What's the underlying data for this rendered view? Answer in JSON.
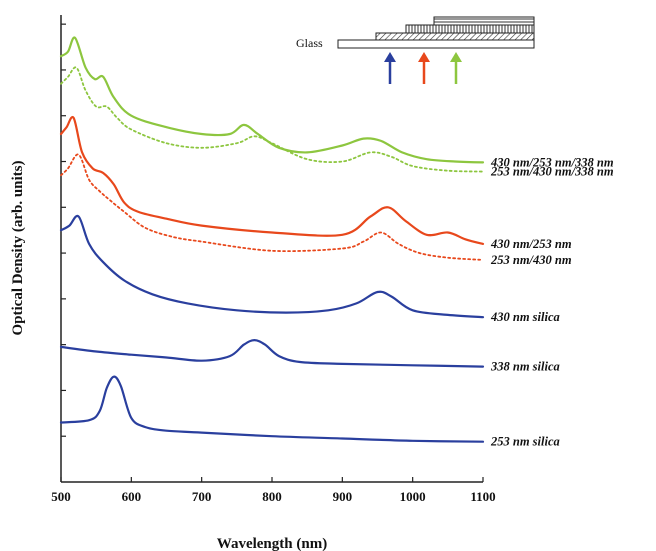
{
  "chart_data": {
    "type": "line",
    "xlabel": "Wavelength (nm)",
    "ylabel": "Optical Density (arb. units)",
    "xlim": [
      500,
      1100
    ],
    "xticks": [
      500,
      600,
      700,
      800,
      900,
      1000,
      1100
    ],
    "grid": false,
    "legend": "right-of-curves",
    "inset": {
      "label": "Glass",
      "arrow_colors": [
        "#2a3f9e",
        "#e8481c",
        "#8dc63f"
      ]
    },
    "series": [
      {
        "name": "430 nm/253 nm/338 nm",
        "color": "#8dc63f",
        "style": "solid",
        "x": [
          500,
          510,
          520,
          535,
          548,
          560,
          575,
          600,
          650,
          700,
          740,
          760,
          780,
          810,
          850,
          900,
          930,
          955,
          985,
          1020,
          1060,
          1100
        ],
        "y": [
          9.3,
          9.4,
          9.7,
          9.05,
          8.8,
          8.85,
          8.4,
          8.0,
          7.75,
          7.6,
          7.6,
          7.8,
          7.6,
          7.3,
          7.2,
          7.35,
          7.5,
          7.45,
          7.2,
          7.05,
          7.0,
          6.98
        ]
      },
      {
        "name": "253 nm/430 nm/338 nm",
        "color": "#8dc63f",
        "style": "dotted",
        "x": [
          500,
          510,
          522,
          535,
          550,
          565,
          580,
          600,
          650,
          700,
          750,
          775,
          800,
          850,
          900,
          940,
          970,
          1000,
          1050,
          1100
        ],
        "y": [
          8.7,
          8.85,
          9.05,
          8.55,
          8.2,
          8.2,
          7.95,
          7.7,
          7.4,
          7.3,
          7.4,
          7.55,
          7.4,
          7.05,
          7.0,
          7.2,
          7.1,
          6.9,
          6.8,
          6.78
        ]
      },
      {
        "name": "430 nm/253 nm",
        "color": "#e8481c",
        "style": "solid",
        "x": [
          500,
          508,
          518,
          530,
          545,
          560,
          575,
          590,
          610,
          650,
          700,
          800,
          900,
          940,
          965,
          990,
          1020,
          1050,
          1075,
          1100
        ],
        "y": [
          7.6,
          7.75,
          7.95,
          7.2,
          6.85,
          6.75,
          6.5,
          6.1,
          5.9,
          5.75,
          5.6,
          5.45,
          5.4,
          5.8,
          6.0,
          5.7,
          5.4,
          5.45,
          5.3,
          5.2
        ]
      },
      {
        "name": "253 nm/430 nm",
        "color": "#e8481c",
        "style": "dotted",
        "x": [
          500,
          510,
          525,
          540,
          555,
          570,
          590,
          620,
          660,
          700,
          800,
          900,
          930,
          955,
          980,
          1010,
          1050,
          1100
        ],
        "y": [
          6.7,
          6.85,
          7.15,
          6.6,
          6.35,
          6.15,
          5.9,
          5.55,
          5.35,
          5.25,
          5.05,
          5.1,
          5.25,
          5.45,
          5.2,
          5.0,
          4.9,
          4.85
        ]
      },
      {
        "name": "430 nm silica",
        "color": "#2a3f9e",
        "style": "solid",
        "x": [
          500,
          512,
          525,
          540,
          560,
          590,
          630,
          680,
          750,
          820,
          880,
          920,
          950,
          970,
          1000,
          1050,
          1100
        ],
        "y": [
          5.5,
          5.6,
          5.8,
          5.2,
          4.8,
          4.4,
          4.1,
          3.9,
          3.75,
          3.7,
          3.75,
          3.9,
          4.15,
          4.05,
          3.75,
          3.65,
          3.6
        ]
      },
      {
        "name": "338 nm silica",
        "color": "#2a3f9e",
        "style": "solid",
        "x": [
          500,
          550,
          600,
          650,
          700,
          740,
          760,
          775,
          790,
          810,
          840,
          900,
          1000,
          1100
        ],
        "y": [
          2.95,
          2.85,
          2.78,
          2.72,
          2.65,
          2.75,
          3.0,
          3.1,
          3.0,
          2.75,
          2.62,
          2.58,
          2.55,
          2.52
        ]
      },
      {
        "name": "253 nm silica",
        "color": "#2a3f9e",
        "style": "solid",
        "x": [
          500,
          540,
          555,
          565,
          575,
          585,
          600,
          620,
          650,
          700,
          800,
          900,
          1000,
          1100
        ],
        "y": [
          1.3,
          1.35,
          1.55,
          2.05,
          2.3,
          2.1,
          1.4,
          1.2,
          1.12,
          1.08,
          1.0,
          0.95,
          0.9,
          0.88
        ]
      }
    ]
  }
}
